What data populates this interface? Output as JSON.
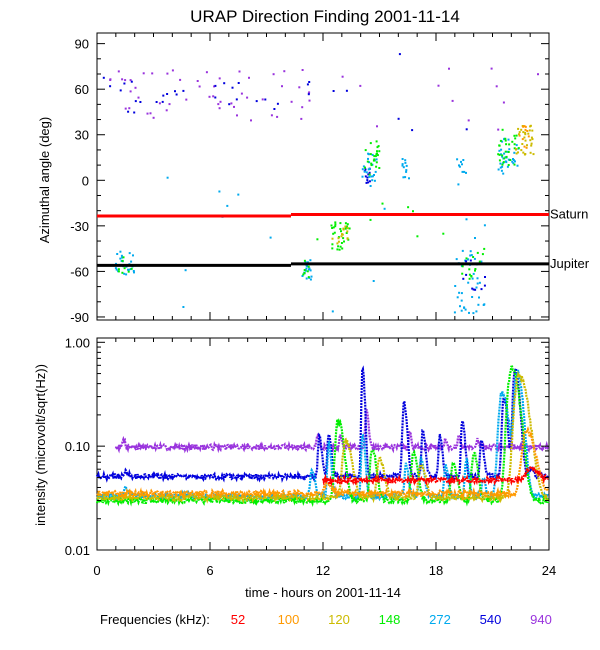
{
  "chart_data": {
    "title": "URAP Direction Finding  2001-11-14",
    "xlabel": "time - hours on 2001-11-14",
    "xlim": [
      0,
      24
    ],
    "xticks": [
      0,
      6,
      12,
      18,
      24
    ],
    "top_panel": {
      "type": "scatter",
      "ylabel": "Azimuthal angle (deg)",
      "ylim": [
        -92,
        97
      ],
      "yticks": [
        90,
        60,
        30,
        0,
        -30,
        -60,
        -90
      ],
      "reference_lines": [
        {
          "name": "Saturn",
          "color": "#ff0000",
          "segments": [
            [
              0,
              10.3,
              -23.5
            ],
            [
              10.3,
              24,
              -22.5
            ]
          ]
        },
        {
          "name": "Jupiter",
          "color": "#000000",
          "segments": [
            [
              0,
              10.3,
              -56
            ],
            [
              10.3,
              24,
              -55
            ]
          ]
        }
      ],
      "clusters": [
        {
          "freq": "940",
          "x0": 0.2,
          "x1": 11.5,
          "y0": 38,
          "y1": 73,
          "n": 55
        },
        {
          "freq": "540",
          "x0": 0.3,
          "x1": 11.3,
          "y0": 44,
          "y1": 68,
          "n": 30
        },
        {
          "freq": "272",
          "x0": 1.0,
          "x1": 2.0,
          "y0": -63,
          "y1": -47,
          "n": 25
        },
        {
          "freq": "148",
          "x0": 1.1,
          "x1": 1.9,
          "y0": -62,
          "y1": -50,
          "n": 8
        },
        {
          "freq": "272",
          "x0": 10.9,
          "x1": 11.4,
          "y0": -66,
          "y1": -52,
          "n": 18
        },
        {
          "freq": "148",
          "x0": 10.9,
          "x1": 11.3,
          "y0": -64,
          "y1": -53,
          "n": 8
        },
        {
          "freq": "148",
          "x0": 12.4,
          "x1": 13.4,
          "y0": -48,
          "y1": -28,
          "n": 28
        },
        {
          "freq": "120",
          "x0": 12.5,
          "x1": 13.4,
          "y0": -44,
          "y1": -30,
          "n": 14
        },
        {
          "freq": "540",
          "x0": 14.2,
          "x1": 14.6,
          "y0": -2,
          "y1": 8,
          "n": 12
        },
        {
          "freq": "272",
          "x0": 14.1,
          "x1": 14.9,
          "y0": -4,
          "y1": 18,
          "n": 22
        },
        {
          "freq": "148",
          "x0": 14.2,
          "x1": 15.0,
          "y0": 2,
          "y1": 26,
          "n": 24
        },
        {
          "freq": "272",
          "x0": 16.2,
          "x1": 16.6,
          "y0": 0,
          "y1": 15,
          "n": 12
        },
        {
          "freq": "272",
          "x0": 19.1,
          "x1": 19.6,
          "y0": -3,
          "y1": 14,
          "n": 10
        },
        {
          "freq": "272",
          "x0": 19.0,
          "x1": 20.6,
          "y0": -88,
          "y1": -45,
          "n": 40
        },
        {
          "freq": "148",
          "x0": 19.2,
          "x1": 20.6,
          "y0": -66,
          "y1": -45,
          "n": 16
        },
        {
          "freq": "540",
          "x0": 19.3,
          "x1": 20.7,
          "y0": -80,
          "y1": -50,
          "n": 10
        },
        {
          "freq": "272",
          "x0": 21.3,
          "x1": 22.4,
          "y0": 4,
          "y1": 28,
          "n": 35
        },
        {
          "freq": "148",
          "x0": 21.3,
          "x1": 22.4,
          "y0": 10,
          "y1": 36,
          "n": 28
        },
        {
          "freq": "120",
          "x0": 22.2,
          "x1": 23.2,
          "y0": 16,
          "y1": 38,
          "n": 32
        },
        {
          "freq": "100",
          "x0": 22.4,
          "x1": 23.2,
          "y0": 20,
          "y1": 36,
          "n": 10
        },
        {
          "freq": "940",
          "x0": 12.0,
          "x1": 23.7,
          "y0": 30,
          "y1": 78,
          "n": 12
        },
        {
          "freq": "272",
          "x0": 0.5,
          "x1": 21.0,
          "y0": -90,
          "y1": 20,
          "n": 16
        },
        {
          "freq": "148",
          "x0": 11.0,
          "x1": 21.0,
          "y0": -42,
          "y1": -10,
          "n": 10
        },
        {
          "freq": "540",
          "x0": 11.5,
          "x1": 20.0,
          "y0": 10,
          "y1": 90,
          "n": 6
        }
      ]
    },
    "bottom_panel": {
      "type": "line",
      "ylabel": "intensity (microvolt/sqrt(Hz))",
      "yscale": "log",
      "ylim": [
        0.01,
        1.1
      ],
      "yticks": [
        1.0,
        0.1,
        0.01
      ],
      "ytick_labels": [
        "1.00",
        "0.10",
        "0.01"
      ],
      "series": [
        {
          "freq": "940",
          "base": 0.098,
          "x0": 1.0,
          "bursts": [
            [
              1.4,
              0.12,
              0.08
            ],
            [
              11.7,
              0.13,
              0.08
            ],
            [
              12.9,
              0.13,
              0.08
            ],
            [
              14.3,
              0.25,
              0.1
            ],
            [
              16.6,
              0.14,
              0.08
            ],
            [
              18.5,
              0.12,
              0.08
            ],
            [
              19.2,
              0.13,
              0.08
            ],
            [
              20.2,
              0.12,
              0.08
            ]
          ]
        },
        {
          "freq": "540",
          "base": 0.051,
          "x0": 0,
          "bursts": [
            [
              1.5,
              0.058,
              0.15
            ],
            [
              11.8,
              0.13,
              0.12
            ],
            [
              12.3,
              0.14,
              0.12
            ],
            [
              14.1,
              0.6,
              0.1
            ],
            [
              16.3,
              0.28,
              0.14
            ],
            [
              17.3,
              0.15,
              0.12
            ],
            [
              18.2,
              0.13,
              0.12
            ],
            [
              19.4,
              0.19,
              0.12
            ],
            [
              20.4,
              0.12,
              0.12
            ],
            [
              21.6,
              0.32,
              0.16
            ],
            [
              22.2,
              0.58,
              0.2
            ],
            [
              23.0,
              0.06,
              0.18
            ]
          ]
        },
        {
          "freq": "272",
          "base": 0.033,
          "x0": 0,
          "bursts": [
            [
              1.5,
              0.04,
              0.15
            ],
            [
              4.8,
              0.035,
              0.2
            ],
            [
              11.4,
              0.06,
              0.15
            ],
            [
              12.3,
              0.11,
              0.12
            ],
            [
              14.1,
              0.14,
              0.12
            ],
            [
              16.4,
              0.07,
              0.12
            ],
            [
              17.2,
              0.08,
              0.15
            ],
            [
              18.5,
              0.07,
              0.12
            ],
            [
              19.6,
              0.08,
              0.12
            ],
            [
              20.5,
              0.05,
              0.12
            ],
            [
              21.5,
              0.35,
              0.3
            ],
            [
              22.3,
              0.56,
              0.25
            ]
          ]
        },
        {
          "freq": "148",
          "base": 0.03,
          "x0": 0,
          "bursts": [
            [
              12.8,
              0.19,
              0.25
            ],
            [
              14.6,
              0.1,
              0.2
            ],
            [
              16.8,
              0.09,
              0.2
            ],
            [
              18.9,
              0.07,
              0.2
            ],
            [
              20.0,
              0.09,
              0.2
            ],
            [
              22.0,
              0.6,
              0.35
            ]
          ]
        },
        {
          "freq": "120",
          "base": 0.032,
          "x0": 0,
          "bursts": [
            [
              13.2,
              0.12,
              0.28
            ],
            [
              15.0,
              0.08,
              0.22
            ],
            [
              17.2,
              0.07,
              0.22
            ],
            [
              22.4,
              0.52,
              0.4
            ]
          ]
        },
        {
          "freq": "100",
          "base": 0.035,
          "x0": 0,
          "bursts": [
            [
              12.2,
              0.045,
              0.25
            ],
            [
              22.8,
              0.15,
              0.4
            ]
          ]
        },
        {
          "freq": "52",
          "base": 0.047,
          "x0": 12.0,
          "bursts": [
            [
              23.0,
              0.063,
              0.4
            ]
          ]
        }
      ]
    },
    "legend": {
      "label": "Frequencies (kHz):",
      "items": [
        {
          "freq": "52",
          "color": "#ff0000"
        },
        {
          "freq": "100",
          "color": "#ff9900"
        },
        {
          "freq": "120",
          "color": "#ccbb00"
        },
        {
          "freq": "148",
          "color": "#00ee00"
        },
        {
          "freq": "272",
          "color": "#00aaee"
        },
        {
          "freq": "540",
          "color": "#0000dd"
        },
        {
          "freq": "940",
          "color": "#9933dd"
        }
      ]
    }
  }
}
